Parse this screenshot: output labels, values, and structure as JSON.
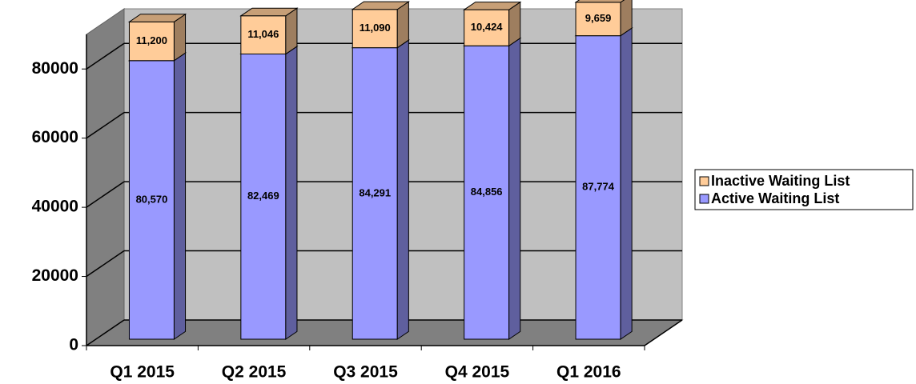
{
  "chart_data": {
    "type": "bar3d_stacked",
    "categories": [
      "Q1 2015",
      "Q2 2015",
      "Q3 2015",
      "Q4 2015",
      "Q1 2016"
    ],
    "series": [
      {
        "name": "Active Waiting List",
        "color": "#9999ff",
        "values": [
          80570,
          82469,
          84291,
          84856,
          87774
        ],
        "value_labels": [
          "80,570",
          "82,469",
          "84,291",
          "84,856",
          "87,774"
        ]
      },
      {
        "name": "Inactive Waiting List",
        "color": "#ffcc99",
        "values": [
          11200,
          11046,
          11090,
          10424,
          9659
        ],
        "value_labels": [
          "11,200",
          "11,046",
          "11,090",
          "10,424",
          "9,659"
        ]
      }
    ],
    "ylim": [
      0,
      90000
    ],
    "yticks": [
      0,
      20000,
      40000,
      60000,
      80000
    ],
    "grid": true,
    "legend": "right"
  }
}
